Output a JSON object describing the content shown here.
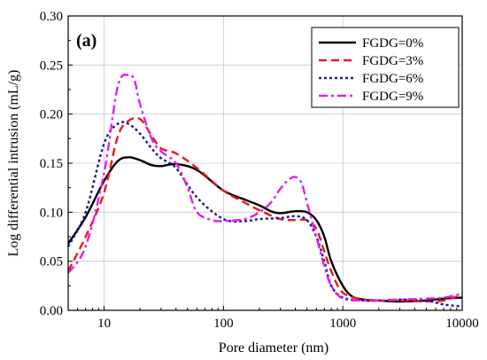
{
  "chart_data": {
    "type": "line",
    "panel_label": "(a)",
    "title": "",
    "xlabel": "Pore diameter (nm)",
    "ylabel": "Log differential intrusion (mL/g)",
    "xscale": "log",
    "xlim": [
      5,
      10000
    ],
    "ylim": [
      0,
      0.3
    ],
    "x_ticks": [
      "10",
      "100",
      "1000",
      "10000"
    ],
    "y_ticks": [
      "0.00",
      "0.05",
      "0.10",
      "0.15",
      "0.20",
      "0.25",
      "0.30"
    ],
    "grid": true,
    "legend_position": "top-right",
    "series": [
      {
        "name": "FGDG=0%",
        "color": "#000000",
        "dash": "solid",
        "points": [
          [
            5,
            0.068
          ],
          [
            7,
            0.095
          ],
          [
            10,
            0.132
          ],
          [
            13,
            0.152
          ],
          [
            16,
            0.156
          ],
          [
            20,
            0.153
          ],
          [
            25,
            0.148
          ],
          [
            30,
            0.147
          ],
          [
            40,
            0.149
          ],
          [
            60,
            0.143
          ],
          [
            100,
            0.122
          ],
          [
            150,
            0.113
          ],
          [
            200,
            0.107
          ],
          [
            250,
            0.101
          ],
          [
            300,
            0.099
          ],
          [
            400,
            0.101
          ],
          [
            500,
            0.1
          ],
          [
            600,
            0.092
          ],
          [
            700,
            0.075
          ],
          [
            800,
            0.05
          ],
          [
            1000,
            0.025
          ],
          [
            1200,
            0.014
          ],
          [
            1500,
            0.011
          ],
          [
            2000,
            0.01
          ],
          [
            3000,
            0.009
          ],
          [
            5000,
            0.01
          ],
          [
            7000,
            0.012
          ],
          [
            10000,
            0.013
          ]
        ]
      },
      {
        "name": "FGDG=3%",
        "color": "#e8191b",
        "dash": "dashed",
        "points": [
          [
            5,
            0.04
          ],
          [
            7,
            0.075
          ],
          [
            10,
            0.12
          ],
          [
            13,
            0.177
          ],
          [
            16,
            0.193
          ],
          [
            20,
            0.195
          ],
          [
            25,
            0.178
          ],
          [
            30,
            0.165
          ],
          [
            40,
            0.16
          ],
          [
            60,
            0.145
          ],
          [
            100,
            0.122
          ],
          [
            150,
            0.11
          ],
          [
            200,
            0.102
          ],
          [
            300,
            0.093
          ],
          [
            400,
            0.092
          ],
          [
            500,
            0.092
          ],
          [
            600,
            0.083
          ],
          [
            700,
            0.06
          ],
          [
            800,
            0.04
          ],
          [
            1000,
            0.018
          ],
          [
            1500,
            0.011
          ],
          [
            2000,
            0.01
          ],
          [
            3000,
            0.01
          ],
          [
            5000,
            0.009
          ],
          [
            7000,
            0.01
          ],
          [
            10000,
            0.016
          ]
        ]
      },
      {
        "name": "FGDG=6%",
        "color": "#1a1a9c",
        "dash": "dotted",
        "points": [
          [
            5,
            0.065
          ],
          [
            7,
            0.1
          ],
          [
            10,
            0.17
          ],
          [
            13,
            0.19
          ],
          [
            16,
            0.19
          ],
          [
            20,
            0.18
          ],
          [
            25,
            0.165
          ],
          [
            30,
            0.155
          ],
          [
            40,
            0.145
          ],
          [
            60,
            0.115
          ],
          [
            100,
            0.093
          ],
          [
            150,
            0.091
          ],
          [
            200,
            0.093
          ],
          [
            300,
            0.094
          ],
          [
            400,
            0.096
          ],
          [
            500,
            0.092
          ],
          [
            600,
            0.075
          ],
          [
            700,
            0.05
          ],
          [
            800,
            0.025
          ],
          [
            1000,
            0.013
          ],
          [
            1500,
            0.01
          ],
          [
            2000,
            0.01
          ],
          [
            3000,
            0.011
          ],
          [
            5000,
            0.01
          ],
          [
            7000,
            0.006
          ],
          [
            10000,
            0.004
          ]
        ]
      },
      {
        "name": "FGDG=9%",
        "color": "#e61ee6",
        "dash": "dashdot",
        "points": [
          [
            5,
            0.038
          ],
          [
            7,
            0.065
          ],
          [
            10,
            0.14
          ],
          [
            13,
            0.228
          ],
          [
            16,
            0.24
          ],
          [
            18,
            0.234
          ],
          [
            20,
            0.21
          ],
          [
            25,
            0.175
          ],
          [
            30,
            0.162
          ],
          [
            40,
            0.15
          ],
          [
            50,
            0.125
          ],
          [
            60,
            0.1
          ],
          [
            80,
            0.092
          ],
          [
            100,
            0.091
          ],
          [
            150,
            0.093
          ],
          [
            200,
            0.1
          ],
          [
            250,
            0.11
          ],
          [
            300,
            0.124
          ],
          [
            350,
            0.133
          ],
          [
            400,
            0.136
          ],
          [
            450,
            0.13
          ],
          [
            500,
            0.11
          ],
          [
            600,
            0.075
          ],
          [
            700,
            0.045
          ],
          [
            800,
            0.025
          ],
          [
            1000,
            0.012
          ],
          [
            1500,
            0.01
          ],
          [
            2000,
            0.01
          ],
          [
            3000,
            0.011
          ],
          [
            5000,
            0.012
          ],
          [
            7000,
            0.013
          ],
          [
            10000,
            0.017
          ]
        ]
      }
    ]
  }
}
